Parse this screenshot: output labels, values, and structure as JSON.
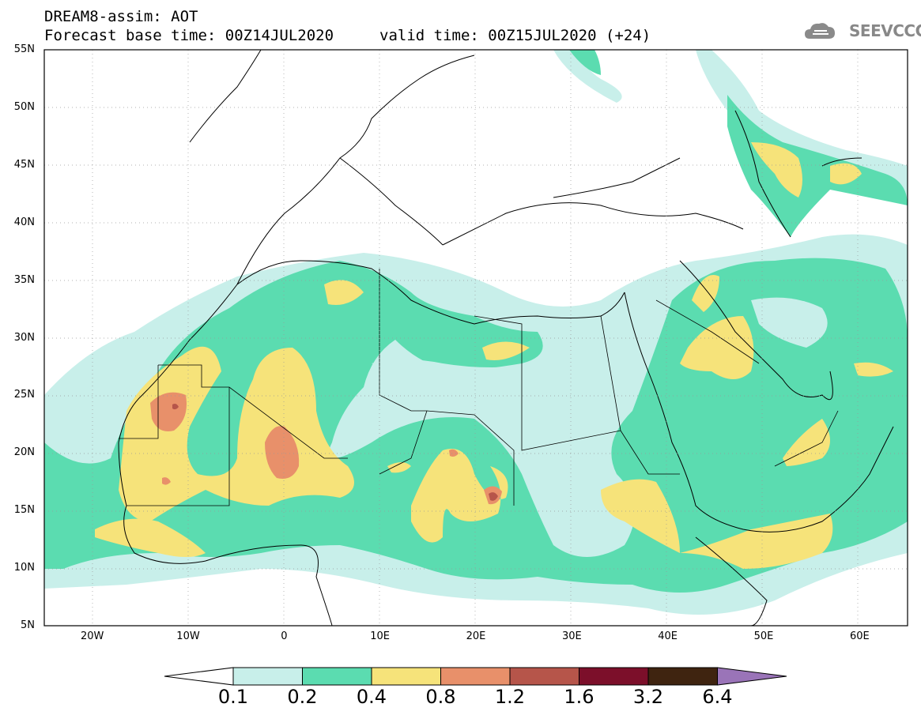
{
  "title": {
    "line1": "DREAM8-assim: AOT",
    "line2": "Forecast base time: 00Z14JUL2020",
    "valid": "valid time: 00Z15JUL2020 (+24)"
  },
  "logo": {
    "text": "SEEVCCC",
    "icon": "cloud-icon"
  },
  "map": {
    "variable": "AOT",
    "projection": "lat-lon",
    "lon_range": [
      -25,
      65
    ],
    "lat_range": [
      5,
      55
    ],
    "lat_labels": [
      "55N",
      "50N",
      "45N",
      "40N",
      "35N",
      "30N",
      "25N",
      "20N",
      "15N",
      "10N",
      "5N"
    ],
    "lon_labels": [
      "20W",
      "10W",
      "0",
      "10E",
      "20E",
      "30E",
      "40E",
      "50E",
      "60E"
    ],
    "grid": "dotted"
  },
  "colorbar": {
    "labels": [
      "0.1",
      "0.2",
      "0.4",
      "0.8",
      "1.2",
      "1.6",
      "3.2",
      "6.4"
    ],
    "colors": [
      "#c8efea",
      "#5bdcb0",
      "#f6e37a",
      "#e8906a",
      "#b6554a",
      "#7c0f2a",
      "#3f2410",
      "#9a74b8"
    ],
    "below_color": "#ffffff"
  }
}
